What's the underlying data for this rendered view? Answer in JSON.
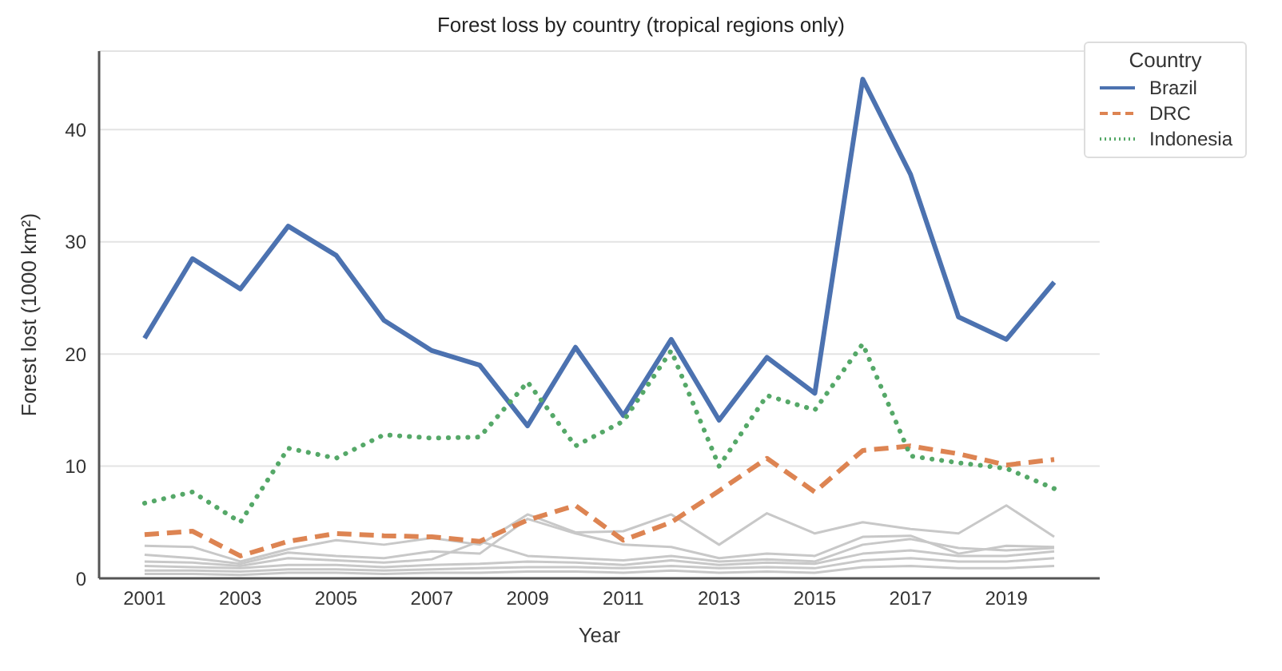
{
  "chart_data": {
    "type": "line",
    "title": "Forest loss by country (tropical regions only)",
    "xlabel": "Year",
    "ylabel": "Forest lost (1000 km²)",
    "legend_title": "Country",
    "legend": "top right",
    "grid": "y",
    "marker": "none",
    "x": [
      2001,
      2002,
      2003,
      2004,
      2005,
      2006,
      2007,
      2008,
      2009,
      2010,
      2011,
      2012,
      2013,
      2014,
      2015,
      2016,
      2017,
      2018,
      2019,
      2020
    ],
    "xlim": [
      2000.05,
      2020.95
    ],
    "xticks": [
      2001,
      2003,
      2005,
      2007,
      2009,
      2011,
      2013,
      2015,
      2017,
      2019
    ],
    "ylim": [
      0,
      47
    ],
    "yticks": [
      0,
      10,
      20,
      30,
      40
    ],
    "series": [
      {
        "color": "#c8c8c8",
        "line_style": "solid",
        "values": [
          2.9,
          2.8,
          1.5,
          2.6,
          3.4,
          3.0,
          3.6,
          3.0,
          5.7,
          4.1,
          4.2,
          5.7,
          3.0,
          5.8,
          4.0,
          5.0,
          4.4,
          4.0,
          6.5,
          3.7
        ]
      },
      {
        "color": "#c8c8c8",
        "line_style": "solid",
        "values": [
          2.1,
          1.8,
          1.3,
          2.3,
          2.0,
          1.8,
          2.4,
          2.2,
          5.3,
          4.0,
          3.0,
          2.8,
          1.8,
          2.2,
          2.0,
          3.7,
          3.8,
          2.2,
          2.9,
          2.8
        ]
      },
      {
        "color": "#c8c8c8",
        "line_style": "solid",
        "values": [
          1.5,
          1.4,
          1.1,
          1.8,
          1.6,
          1.4,
          1.7,
          3.3,
          2.0,
          1.8,
          1.6,
          2.0,
          1.5,
          1.7,
          1.5,
          3.0,
          3.5,
          2.7,
          2.5,
          2.7
        ]
      },
      {
        "color": "#c8c8c8",
        "line_style": "solid",
        "values": [
          1.1,
          1.0,
          0.9,
          1.2,
          1.2,
          1.0,
          1.2,
          1.3,
          1.5,
          1.4,
          1.2,
          1.6,
          1.2,
          1.4,
          1.3,
          2.2,
          2.5,
          2.0,
          2.0,
          2.4
        ]
      },
      {
        "color": "#c8c8c8",
        "line_style": "solid",
        "values": [
          0.7,
          0.7,
          0.6,
          0.8,
          0.8,
          0.7,
          0.8,
          0.9,
          1.0,
          1.0,
          0.9,
          1.1,
          0.9,
          1.0,
          0.9,
          1.6,
          1.8,
          1.5,
          1.5,
          1.8
        ]
      },
      {
        "color": "#c8c8c8",
        "line_style": "solid",
        "values": [
          0.4,
          0.4,
          0.3,
          0.5,
          0.5,
          0.4,
          0.5,
          0.5,
          0.6,
          0.6,
          0.5,
          0.7,
          0.5,
          0.6,
          0.5,
          1.0,
          1.1,
          0.9,
          0.9,
          1.1
        ]
      },
      {
        "name": "Brazil",
        "color": "#4c72b0",
        "line_style": "solid",
        "values": [
          21.4,
          28.5,
          25.8,
          31.4,
          28.8,
          23.0,
          20.3,
          19.0,
          13.6,
          20.6,
          14.5,
          21.3,
          14.1,
          19.7,
          16.5,
          44.5,
          36.0,
          23.3,
          21.3,
          26.4
        ]
      },
      {
        "name": "DRC",
        "color": "#dd8452",
        "line_style": "dashed",
        "values": [
          3.9,
          4.2,
          2.0,
          3.3,
          4.0,
          3.8,
          3.7,
          3.3,
          5.2,
          6.5,
          3.4,
          5.0,
          7.8,
          10.7,
          7.7,
          11.4,
          11.8,
          11.1,
          10.1,
          10.6
        ]
      },
      {
        "name": "Indonesia",
        "color": "#55a868",
        "line_style": "dotted",
        "values": [
          6.7,
          7.7,
          5.0,
          11.6,
          10.7,
          12.8,
          12.5,
          12.6,
          17.5,
          11.8,
          14.0,
          20.3,
          10.0,
          16.3,
          15.0,
          20.9,
          10.9,
          10.3,
          9.8,
          8.0
        ]
      }
    ]
  }
}
